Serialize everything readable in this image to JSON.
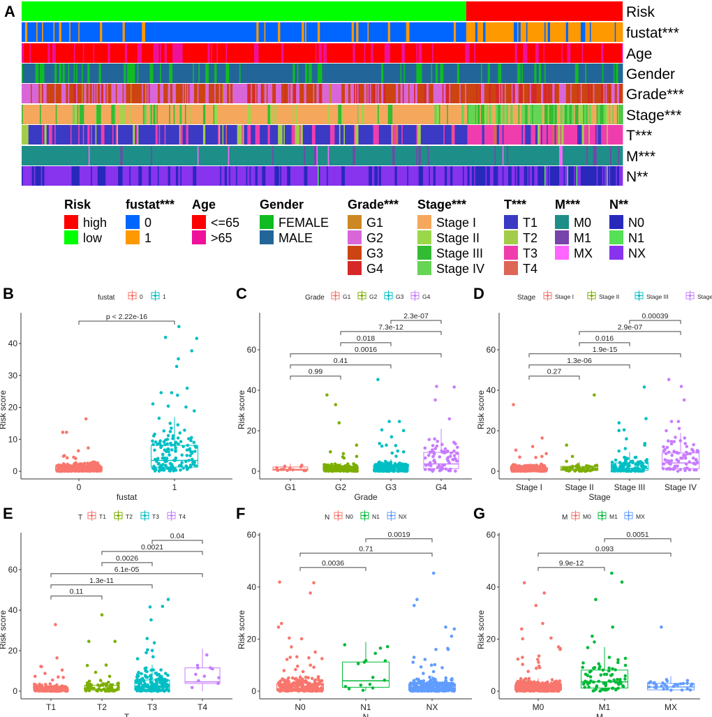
{
  "figure": {
    "panel_labels": [
      "A",
      "B",
      "C",
      "D",
      "E",
      "F",
      "G"
    ]
  },
  "chart_data": [
    {
      "id": "A",
      "type": "heatmap",
      "title": "",
      "n_samples_approx": 530,
      "risk_split_fraction_low": 0.74,
      "tracks": [
        {
          "key": "risk",
          "label": "Risk",
          "levels": [
            "high",
            "low"
          ],
          "colors": [
            "#FF0000",
            "#00FF00"
          ],
          "pattern": "sorted",
          "low_share": 0.74
        },
        {
          "key": "fustat",
          "label": "fustat***",
          "levels": [
            "0",
            "1"
          ],
          "colors": [
            "#0066FF",
            "#FF9900"
          ],
          "share_low_risk": [
            0.82,
            0.18
          ],
          "share_high_risk": [
            0.35,
            0.65
          ]
        },
        {
          "key": "age",
          "label": "Age",
          "levels": [
            "<=65",
            ">65"
          ],
          "colors": [
            "#FF0000",
            "#EE1199"
          ],
          "share_low_risk": [
            0.66,
            0.34
          ],
          "share_high_risk": [
            0.6,
            0.4
          ]
        },
        {
          "key": "gender",
          "label": "Gender",
          "levels": [
            "FEMALE",
            "MALE"
          ],
          "colors": [
            "#11BB22",
            "#226699"
          ],
          "share_low_risk": [
            0.33,
            0.67
          ],
          "share_high_risk": [
            0.38,
            0.62
          ]
        },
        {
          "key": "grade",
          "label": "Grade***",
          "levels": [
            "G1",
            "G2",
            "G3",
            "G4"
          ],
          "colors": [
            "#CC8822",
            "#D966D9",
            "#CC4411",
            "#D62828"
          ],
          "share_low_risk": [
            0.02,
            0.5,
            0.38,
            0.1
          ],
          "share_high_risk": [
            0.01,
            0.25,
            0.44,
            0.3
          ]
        },
        {
          "key": "stage",
          "label": "Stage***",
          "levels": [
            "Stage I",
            "Stage II",
            "Stage III",
            "Stage IV"
          ],
          "colors": [
            "#F5A85C",
            "#9AD84A",
            "#33BB33",
            "#66D455"
          ],
          "share_low_risk": [
            0.58,
            0.12,
            0.22,
            0.08
          ],
          "share_high_risk": [
            0.25,
            0.1,
            0.35,
            0.3
          ]
        },
        {
          "key": "t",
          "label": "T***",
          "levels": [
            "T1",
            "T2",
            "T3",
            "T4"
          ],
          "colors": [
            "#3A3AC4",
            "#A3CC4A",
            "#F03DAE",
            "#DD6655"
          ],
          "share_low_risk": [
            0.58,
            0.13,
            0.28,
            0.01
          ],
          "share_high_risk": [
            0.28,
            0.12,
            0.55,
            0.05
          ]
        },
        {
          "key": "m",
          "label": "M***",
          "levels": [
            "M0",
            "M1",
            "MX"
          ],
          "colors": [
            "#1E8E88",
            "#7744AA",
            "#FF66FF"
          ],
          "share_low_risk": [
            0.9,
            0.05,
            0.05
          ],
          "share_high_risk": [
            0.72,
            0.26,
            0.02
          ]
        },
        {
          "key": "n",
          "label": "N**",
          "levels": [
            "N0",
            "N1",
            "NX"
          ],
          "colors": [
            "#2828BB",
            "#55E055",
            "#8833EE"
          ],
          "share_low_risk": [
            0.43,
            0.01,
            0.56
          ],
          "share_high_risk": [
            0.5,
            0.04,
            0.46
          ]
        }
      ],
      "legend": [
        {
          "title": "Risk",
          "items": [
            "high",
            "low"
          ],
          "colors": [
            "#FF0000",
            "#00FF00"
          ]
        },
        {
          "title": "fustat***",
          "items": [
            "0",
            "1"
          ],
          "colors": [
            "#0066FF",
            "#FF9900"
          ]
        },
        {
          "title": "Age",
          "items": [
            "<=65",
            ">65"
          ],
          "colors": [
            "#FF0000",
            "#EE1199"
          ]
        },
        {
          "title": "Gender",
          "items": [
            "FEMALE",
            "MALE"
          ],
          "colors": [
            "#11BB22",
            "#226699"
          ]
        },
        {
          "title": "Grade***",
          "items": [
            "G1",
            "G2",
            "G3",
            "G4"
          ],
          "colors": [
            "#CC8822",
            "#D966D9",
            "#CC4411",
            "#D62828"
          ]
        },
        {
          "title": "Stage***",
          "items": [
            "Stage I",
            "Stage II",
            "Stage III",
            "Stage IV"
          ],
          "colors": [
            "#F5A85C",
            "#9AD84A",
            "#33BB33",
            "#66D455"
          ]
        },
        {
          "title": "T***",
          "items": [
            "T1",
            "T2",
            "T3",
            "T4"
          ],
          "colors": [
            "#3A3AC4",
            "#A3CC4A",
            "#F03DAE",
            "#DD6655"
          ]
        },
        {
          "title": "M***",
          "items": [
            "M0",
            "M1",
            "MX"
          ],
          "colors": [
            "#1E8E88",
            "#7744AA",
            "#FF66FF"
          ]
        },
        {
          "title": "N**",
          "items": [
            "N0",
            "N1",
            "NX"
          ],
          "colors": [
            "#2828BB",
            "#55E055",
            "#8833EE"
          ]
        }
      ]
    },
    {
      "id": "B",
      "type": "box",
      "legend_title": "fustat",
      "xlabel": "fustat",
      "ylabel": "Risk score",
      "ylim": [
        -2,
        49
      ],
      "yticks": [
        0,
        10,
        20,
        30,
        40
      ],
      "categories": [
        "0",
        "1"
      ],
      "colors": [
        "#F8766D",
        "#00BFC4"
      ],
      "boxes": [
        {
          "q1": 0.3,
          "median": 0.7,
          "q3": 1.4,
          "whisker_low": 0,
          "whisker_high": 3.0,
          "n": 380,
          "outliers": [
            16.4,
            12.2,
            12.2,
            7.3,
            6.4,
            4.9,
            4.7,
            4.4,
            4.2,
            4.0
          ]
        },
        {
          "q1": 1.3,
          "median": 3.4,
          "q3": 8.1,
          "whisker_low": 0,
          "whisker_high": 17.0,
          "n": 150,
          "outliers": [
            45.3,
            41.9,
            41.6,
            37.7,
            35.2,
            32.8,
            26.0,
            24.6,
            24.6,
            23.8,
            21.1,
            20.4,
            20.1,
            18.9
          ]
        }
      ],
      "comparisons": [
        {
          "from": "0",
          "to": "1",
          "label": "p < 2.22e-16",
          "y": 47
        }
      ]
    },
    {
      "id": "C",
      "type": "box",
      "legend_title": "Grade",
      "xlabel": "Grade",
      "ylabel": "Risk score",
      "ylim": [
        -4,
        78
      ],
      "yticks": [
        0,
        20,
        40,
        60
      ],
      "categories": [
        "G1",
        "G2",
        "G3",
        "G4"
      ],
      "colors": [
        "#F8766D",
        "#7CAE00",
        "#00BFC4",
        "#C77CFF"
      ],
      "boxes": [
        {
          "q1": 0.5,
          "median": 0.9,
          "q3": 2.1,
          "whisker_low": 0,
          "whisker_high": 3.8,
          "n": 14,
          "outliers": []
        },
        {
          "q1": 0.4,
          "median": 0.8,
          "q3": 1.8,
          "whisker_low": 0,
          "whisker_high": 4.0,
          "n": 225,
          "outliers": [
            37.7,
            32.9,
            23.9,
            12.9,
            9.6,
            8.7,
            7.3,
            7.1,
            6.5
          ]
        },
        {
          "q1": 0.4,
          "median": 1.1,
          "q3": 2.8,
          "whisker_low": 0,
          "whisker_high": 6.0,
          "n": 205,
          "outliers": [
            45.3,
            24.6,
            24.6,
            20.4,
            20.1,
            17.0,
            13.7,
            12.9,
            12.7,
            12.4,
            10.0,
            9.6,
            9.0,
            7.4
          ]
        },
        {
          "q1": 1.3,
          "median": 3.6,
          "q3": 9.3,
          "whisker_low": 0,
          "whisker_high": 21.0,
          "n": 75,
          "outliers": [
            41.9,
            41.6,
            35.2,
            25.9
          ]
        }
      ],
      "comparisons": [
        {
          "from": "G1",
          "to": "G2",
          "label": "0.99",
          "y": 47
        },
        {
          "from": "G1",
          "to": "G3",
          "label": "0.41",
          "y": 52.5
        },
        {
          "from": "G1",
          "to": "G4",
          "label": "0.0016",
          "y": 58
        },
        {
          "from": "G2",
          "to": "G3",
          "label": "0.018",
          "y": 63.5
        },
        {
          "from": "G2",
          "to": "G4",
          "label": "7.3e-12",
          "y": 69
        },
        {
          "from": "G3",
          "to": "G4",
          "label": "2.3e-07",
          "y": 74.5
        }
      ]
    },
    {
      "id": "D",
      "type": "box",
      "legend_title": "Stage",
      "xlabel": "Stage",
      "ylabel": "Risk score",
      "ylim": [
        -4,
        78
      ],
      "yticks": [
        0,
        20,
        40,
        60
      ],
      "categories": [
        "Stage I",
        "Stage II",
        "Stage III",
        "Stage IV"
      ],
      "colors": [
        "#F8766D",
        "#7CAE00",
        "#00BFC4",
        "#C77CFF"
      ],
      "boxes": [
        {
          "q1": 0.4,
          "median": 0.8,
          "q3": 1.7,
          "whisker_low": 0,
          "whisker_high": 3.8,
          "n": 265,
          "outliers": [
            32.9,
            16.4,
            12.2,
            10.4,
            8.7,
            7.3,
            7.0,
            6.8
          ]
        },
        {
          "q1": 0.4,
          "median": 0.9,
          "q3": 2.4,
          "whisker_low": 0,
          "whisker_high": 4.6,
          "n": 57,
          "outliers": [
            37.7,
            12.9,
            7.3,
            4.9
          ]
        },
        {
          "q1": 0.5,
          "median": 1.4,
          "q3": 4.1,
          "whisker_low": 0,
          "whisker_high": 9.5,
          "n": 123,
          "outliers": [
            41.6,
            26.0,
            23.9,
            20.4,
            20.1,
            16.0,
            13.7,
            12.9,
            11.2,
            10.0
          ]
        },
        {
          "q1": 1.3,
          "median": 4.1,
          "q3": 9.0,
          "whisker_low": 0,
          "whisker_high": 18.9,
          "n": 82,
          "outliers": [
            45.3,
            41.9,
            35.2,
            24.6,
            24.6,
            21.1,
            20.0
          ]
        }
      ],
      "comparisons": [
        {
          "from": "Stage I",
          "to": "Stage II",
          "label": "0.27",
          "y": 47
        },
        {
          "from": "Stage I",
          "to": "Stage III",
          "label": "1.3e-06",
          "y": 52.5
        },
        {
          "from": "Stage I",
          "to": "Stage IV",
          "label": "1.9e-15",
          "y": 58
        },
        {
          "from": "Stage II",
          "to": "Stage III",
          "label": "0.016",
          "y": 63.5
        },
        {
          "from": "Stage II",
          "to": "Stage IV",
          "label": "2.9e-07",
          "y": 69
        },
        {
          "from": "Stage III",
          "to": "Stage IV",
          "label": "0.00039",
          "y": 74.5
        }
      ]
    },
    {
      "id": "E",
      "type": "box",
      "legend_title": "T",
      "xlabel": "T",
      "ylabel": "Risk score",
      "ylim": [
        -4,
        78
      ],
      "yticks": [
        0,
        20,
        40,
        60
      ],
      "categories": [
        "T1",
        "T2",
        "T3",
        "T4"
      ],
      "colors": [
        "#F8766D",
        "#7CAE00",
        "#00BFC4",
        "#C77CFF"
      ],
      "boxes": [
        {
          "q1": 0.4,
          "median": 0.8,
          "q3": 1.7,
          "whisker_low": 0,
          "whisker_high": 3.8,
          "n": 270,
          "outliers": [
            32.9,
            16.4,
            12.2,
            12.1,
            10.4,
            8.8,
            7.3,
            7.0,
            6.8,
            5.5
          ]
        },
        {
          "q1": 0.4,
          "median": 1.0,
          "q3": 2.9,
          "whisker_low": 0,
          "whisker_high": 5.3,
          "n": 69,
          "outliers": [
            37.7,
            24.6,
            24.6,
            12.9,
            12.7,
            9.3,
            7.3,
            5.3,
            4.9
          ]
        },
        {
          "q1": 0.6,
          "median": 2.0,
          "q3": 5.5,
          "whisker_low": 0,
          "whisker_high": 13.0,
          "n": 180,
          "outliers": [
            45.3,
            41.9,
            41.6,
            35.2,
            26.0,
            23.9,
            20.4,
            20.1,
            19.0,
            17.0,
            16.0
          ]
        },
        {
          "q1": 3.8,
          "median": 4.6,
          "q3": 11.5,
          "whisker_low": 0,
          "whisker_high": 21.0,
          "n": 11,
          "outliers": []
        }
      ],
      "comparisons": [
        {
          "from": "T1",
          "to": "T2",
          "label": "0.11",
          "y": 47
        },
        {
          "from": "T1",
          "to": "T3",
          "label": "1.3e-11",
          "y": 52.5
        },
        {
          "from": "T1",
          "to": "T4",
          "label": "6.1e-05",
          "y": 58
        },
        {
          "from": "T2",
          "to": "T3",
          "label": "0.0026",
          "y": 63.5
        },
        {
          "from": "T2",
          "to": "T4",
          "label": "0.0021",
          "y": 69
        },
        {
          "from": "T3",
          "to": "T4",
          "label": "0.04",
          "y": 74.5
        }
      ]
    },
    {
      "id": "F",
      "type": "box",
      "legend_title": "N",
      "xlabel": "N",
      "ylabel": "Risk score",
      "ylim": [
        -3,
        61
      ],
      "yticks": [
        0,
        20,
        40,
        60
      ],
      "categories": [
        "N0",
        "N1",
        "NX"
      ],
      "colors": [
        "#F8766D",
        "#00BA38",
        "#619CFF"
      ],
      "boxes": [
        {
          "q1": 0.4,
          "median": 1.0,
          "q3": 2.9,
          "whisker_low": 0,
          "whisker_high": 6.5,
          "n": 240,
          "outliers": [
            41.9,
            41.6,
            37.7,
            26.0,
            24.6,
            20.4,
            20.1,
            17.0,
            15.0,
            13.2,
            13.0,
            12.8,
            12.5,
            12.2,
            10.0,
            9.6,
            9.2,
            8.3,
            7.9,
            7.5
          ]
        },
        {
          "q1": 1.5,
          "median": 4.0,
          "q3": 11.2,
          "whisker_low": 0,
          "whisker_high": 18.9,
          "n": 16,
          "outliers": []
        },
        {
          "q1": 0.3,
          "median": 0.9,
          "q3": 2.8,
          "whisker_low": 0,
          "whisker_high": 6.0,
          "n": 275,
          "outliers": [
            45.3,
            35.2,
            32.9,
            24.6,
            23.9,
            21.1,
            16.4,
            16.0,
            16.0,
            13.0,
            12.2,
            11.1,
            10.2,
            10.0,
            9.3,
            9.0,
            7.5,
            6.8
          ]
        }
      ],
      "comparisons": [
        {
          "from": "N0",
          "to": "N1",
          "label": "0.0036",
          "y": 47.5
        },
        {
          "from": "N0",
          "to": "NX",
          "label": "0.71",
          "y": 53
        },
        {
          "from": "N1",
          "to": "NX",
          "label": "0.0019",
          "y": 58.5
        }
      ]
    },
    {
      "id": "G",
      "type": "box",
      "legend_title": "M",
      "xlabel": "M",
      "ylabel": "Risk score",
      "ylim": [
        -3,
        61
      ],
      "yticks": [
        0,
        20,
        40,
        60
      ],
      "categories": [
        "M0",
        "M1",
        "MX"
      ],
      "colors": [
        "#F8766D",
        "#00BA38",
        "#619CFF"
      ],
      "boxes": [
        {
          "q1": 0.4,
          "median": 0.9,
          "q3": 2.3,
          "whisker_low": 0,
          "whisker_high": 5.0,
          "n": 420,
          "outliers": [
            41.6,
            37.7,
            32.9,
            26.0,
            23.9,
            20.4,
            20.1,
            17.0,
            16.4,
            16.0,
            13.5,
            13.0,
            12.3,
            12.2,
            11.1,
            10.3,
            9.6,
            9.0,
            8.8,
            7.6
          ]
        },
        {
          "q1": 1.2,
          "median": 3.6,
          "q3": 8.1,
          "whisker_low": 0,
          "whisker_high": 17.0,
          "n": 79,
          "outliers": [
            45.3,
            41.9,
            35.2,
            24.6,
            21.1,
            18.9
          ]
        },
        {
          "q1": 0.5,
          "median": 1.6,
          "q3": 3.0,
          "whisker_low": 0,
          "whisker_high": 5.8,
          "n": 30,
          "outliers": [
            24.6
          ]
        }
      ],
      "comparisons": [
        {
          "from": "M0",
          "to": "M1",
          "label": "9.9e-12",
          "y": 47.5
        },
        {
          "from": "M0",
          "to": "MX",
          "label": "0.093",
          "y": 53
        },
        {
          "from": "M1",
          "to": "MX",
          "label": "0.0051",
          "y": 58.5
        }
      ]
    }
  ]
}
